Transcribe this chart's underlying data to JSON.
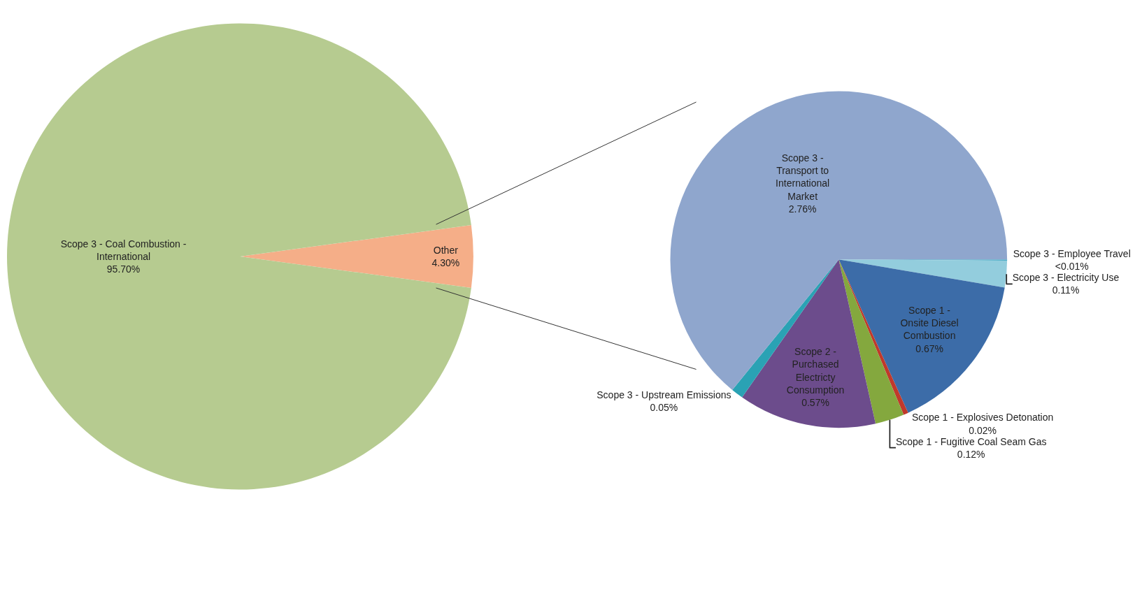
{
  "chart_data": [
    {
      "type": "pie",
      "categories": [
        "Other",
        "Scope 3 - Coal Combustion - International"
      ],
      "values": [
        4.3,
        95.7
      ],
      "colors": [
        "#f5ae88",
        "#b6cb90"
      ],
      "value_labels": [
        "4.30%",
        "95.70%"
      ]
    },
    {
      "type": "pie",
      "categories": [
        "Scope 3 - Employee Travel",
        "Scope 3 - Electricity Use",
        "Scope 1 - Onsite Diesel Combustion",
        "Scope 1 - Explosives Detonation",
        "Scope 1 - Fugitive Coal Seam Gas",
        "Scope 2 - Purchased Electricty Consumption",
        "Scope 3 - Upstream Emissions",
        "Scope 3 - Transport to International Market"
      ],
      "values": [
        0.005,
        0.11,
        0.67,
        0.02,
        0.12,
        0.57,
        0.05,
        2.76
      ],
      "colors": [
        "#4bacc6",
        "#93cddd",
        "#3c6ca8",
        "#c0392b",
        "#84a83e",
        "#6c4c8c",
        "#2aa2b4",
        "#8fa6cd"
      ],
      "value_labels": [
        "<0.01%",
        "0.11%",
        "0.67%",
        "0.02%",
        "0.12%",
        "0.57%",
        "0.05%",
        "2.76%"
      ]
    }
  ]
}
